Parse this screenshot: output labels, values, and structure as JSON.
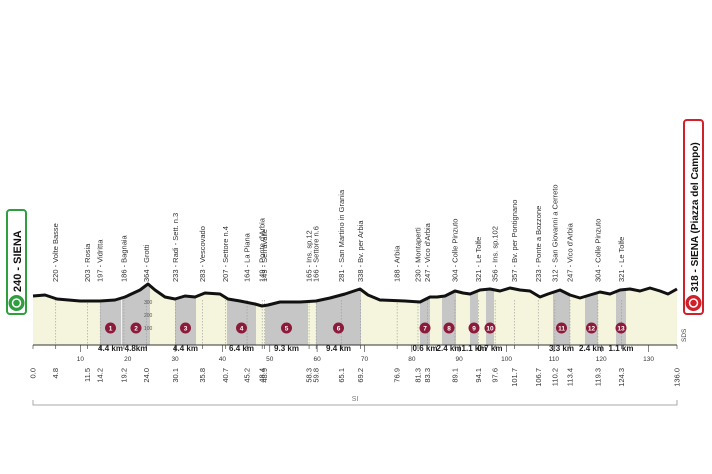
{
  "start": {
    "label": "240 - SIENA"
  },
  "finish": {
    "label": "318 - SIENA (Piazza del Campo)"
  },
  "region": "SI",
  "credit": "SDS",
  "elevation_scale": [
    "300",
    "200",
    "100"
  ],
  "km_ticks": [
    "10",
    "20",
    "30",
    "40",
    "50",
    "60",
    "70",
    "80",
    "90",
    "100",
    "110",
    "120",
    "130"
  ],
  "km_marks": [
    "0.0",
    "4.8",
    "11.5",
    "14.2",
    "19.2",
    "24.0",
    "30.1",
    "35.8",
    "40.7",
    "45.2",
    "48.4",
    "48.9",
    "58.3",
    "59.8",
    "65.1",
    "69.2",
    "76.9",
    "81.3",
    "83.3",
    "89.1",
    "94.1",
    "97.6",
    "101.7",
    "106.7",
    "110.2",
    "113.4",
    "119.3",
    "124.3",
    "136.0"
  ],
  "waypoints": [
    {
      "km": "4.8",
      "label": "220 - Volte Basse"
    },
    {
      "km": "11.5",
      "label": "203 - Rosia"
    },
    {
      "km": "14.2",
      "label": "197 - Vidritta"
    },
    {
      "km": "19.2",
      "label": "186 - Bagnaia"
    },
    {
      "km": "24.0",
      "label": "364 - Grotti"
    },
    {
      "km": "30.1",
      "label": "233 - Radi - Sett. n.3"
    },
    {
      "km": "35.8",
      "label": "283 - Vescovado"
    },
    {
      "km": "40.7",
      "label": "207 - Settore n.4"
    },
    {
      "km": "45.2",
      "label": "164 - La Piana"
    },
    {
      "km": "48.4",
      "label": "149 - Ponte d'Arbia"
    },
    {
      "km": "48.9",
      "label": "149 - Serravalle"
    },
    {
      "km": "58.3",
      "label": "165 - Ins. sp.12"
    },
    {
      "km": "59.8",
      "label": "166 - Settore n.6"
    },
    {
      "km": "65.1",
      "label": "281 - San Martino in Grania"
    },
    {
      "km": "69.2",
      "label": "338 - Bv. per Arbia"
    },
    {
      "km": "76.9",
      "label": "188 - Arbia"
    },
    {
      "km": "81.3",
      "label": "230 - Montaperti"
    },
    {
      "km": "83.3",
      "label": "247 - Vico d'Arbia"
    },
    {
      "km": "89.1",
      "label": "304 - Colle Pinzuto"
    },
    {
      "km": "94.1",
      "label": "321 - Le Tolfe"
    },
    {
      "km": "97.6",
      "label": "356 - Ins. sp.102"
    },
    {
      "km": "101.7",
      "label": "357 - Bv. per Pontignano"
    },
    {
      "km": "106.7",
      "label": "233 - Ponte a Bozzone"
    },
    {
      "km": "110.2",
      "label": "312 - San Giovanni a Cerreto"
    },
    {
      "km": "113.4",
      "label": "247 - Vico d'Arbia"
    },
    {
      "km": "119.3",
      "label": "304 - Colle Pinzuto"
    },
    {
      "km": "124.3",
      "label": "321 - Le Tolfe"
    }
  ],
  "sectors": [
    {
      "number": "1",
      "length": "4.4 km"
    },
    {
      "number": "2",
      "length": "4.8km"
    },
    {
      "number": "3",
      "length": "4.4 km"
    },
    {
      "number": "4",
      "length": "6.4 km"
    },
    {
      "number": "5",
      "length": "9.3 km"
    },
    {
      "number": "6",
      "length": "9.4 km"
    },
    {
      "number": "7",
      "length": "0.6 km"
    },
    {
      "number": "8",
      "length": "2.4 km"
    },
    {
      "number": "9",
      "length": "1.1 km"
    },
    {
      "number": "10",
      "length": "0.7 km"
    },
    {
      "number": "11",
      "length": "3.3 km"
    },
    {
      "number": "12",
      "length": "2.4 km"
    },
    {
      "number": "13",
      "length": "1.1 km"
    }
  ]
}
